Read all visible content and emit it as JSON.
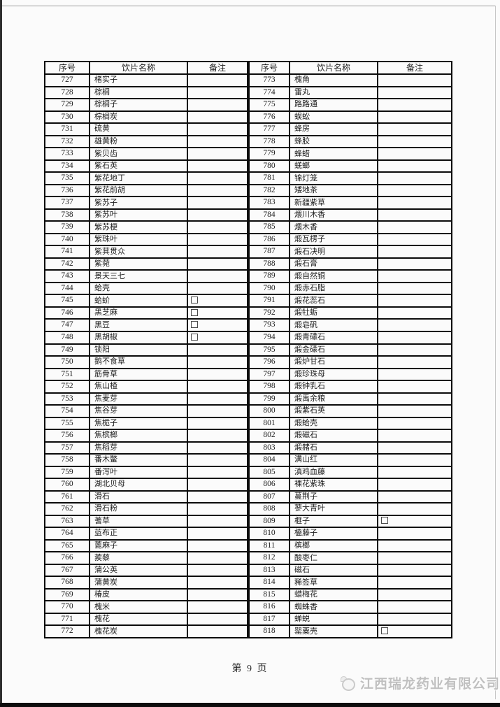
{
  "page": {
    "footer_page_label": "第 9 页",
    "watermark_company": "江西瑞龙药业有限公司"
  },
  "colors": {
    "table_border": "#0b0b0b",
    "text": "#202020",
    "watermark": "#c0c0c0",
    "page_background": "#fbfbfb"
  },
  "table": {
    "headers": {
      "no": "序号",
      "name": "饮片名称",
      "remark": "备注"
    },
    "left_col_widths": [
      64,
      140,
      86
    ],
    "right_col_widths": [
      58,
      126,
      106
    ],
    "left_rows": [
      {
        "no": "727",
        "name": "楮实子",
        "checkbox": false
      },
      {
        "no": "728",
        "name": "棕榈",
        "checkbox": false
      },
      {
        "no": "729",
        "name": "棕榈子",
        "checkbox": false
      },
      {
        "no": "730",
        "name": "棕榈炭",
        "checkbox": false
      },
      {
        "no": "731",
        "name": "硫黄",
        "checkbox": false
      },
      {
        "no": "732",
        "name": "雄黄粉",
        "checkbox": false
      },
      {
        "no": "733",
        "name": "紫贝齿",
        "checkbox": false
      },
      {
        "no": "734",
        "name": "紫石英",
        "checkbox": false
      },
      {
        "no": "735",
        "name": "紫花地丁",
        "checkbox": false
      },
      {
        "no": "736",
        "name": "紫花前胡",
        "checkbox": false
      },
      {
        "no": "737",
        "name": "紫苏子",
        "checkbox": false
      },
      {
        "no": "738",
        "name": "紫苏叶",
        "checkbox": false
      },
      {
        "no": "739",
        "name": "紫苏梗",
        "checkbox": false
      },
      {
        "no": "740",
        "name": "紫珠叶",
        "checkbox": false
      },
      {
        "no": "741",
        "name": "紫萁贯众",
        "checkbox": false
      },
      {
        "no": "742",
        "name": "紫菀",
        "checkbox": false
      },
      {
        "no": "743",
        "name": "景天三七",
        "checkbox": false
      },
      {
        "no": "744",
        "name": "蛤壳",
        "checkbox": false
      },
      {
        "no": "745",
        "name": "蛤蚧",
        "checkbox": true
      },
      {
        "no": "746",
        "name": "黑芝麻",
        "checkbox": true
      },
      {
        "no": "747",
        "name": "黑豆",
        "checkbox": true
      },
      {
        "no": "748",
        "name": "黑胡椒",
        "checkbox": true
      },
      {
        "no": "749",
        "name": "锁阳",
        "checkbox": false
      },
      {
        "no": "750",
        "name": "鹅不食草",
        "checkbox": false
      },
      {
        "no": "751",
        "name": "筋骨草",
        "checkbox": false
      },
      {
        "no": "752",
        "name": "焦山楂",
        "checkbox": false
      },
      {
        "no": "753",
        "name": "焦麦芽",
        "checkbox": false
      },
      {
        "no": "754",
        "name": "焦谷芽",
        "checkbox": false
      },
      {
        "no": "755",
        "name": "焦栀子",
        "checkbox": false
      },
      {
        "no": "756",
        "name": "焦槟榔",
        "checkbox": false
      },
      {
        "no": "757",
        "name": "焦稻芽",
        "checkbox": false
      },
      {
        "no": "758",
        "name": "番木鳖",
        "checkbox": false
      },
      {
        "no": "759",
        "name": "番泻叶",
        "checkbox": false
      },
      {
        "no": "760",
        "name": "湖北贝母",
        "checkbox": false
      },
      {
        "no": "761",
        "name": "滑石",
        "checkbox": false
      },
      {
        "no": "762",
        "name": "滑石粉",
        "checkbox": false
      },
      {
        "no": "763",
        "name": "蓍草",
        "checkbox": false
      },
      {
        "no": "764",
        "name": "蓝布正",
        "checkbox": false
      },
      {
        "no": "765",
        "name": "蓖麻子",
        "checkbox": false
      },
      {
        "no": "766",
        "name": "蒺藜",
        "checkbox": false
      },
      {
        "no": "767",
        "name": "蒲公英",
        "checkbox": false
      },
      {
        "no": "768",
        "name": "蒲黄炭",
        "checkbox": false
      },
      {
        "no": "769",
        "name": "椿皮",
        "checkbox": false
      },
      {
        "no": "770",
        "name": "槐米",
        "checkbox": false
      },
      {
        "no": "771",
        "name": "槐花",
        "checkbox": false
      },
      {
        "no": "772",
        "name": "槐花炭",
        "checkbox": false
      }
    ],
    "right_rows": [
      {
        "no": "773",
        "name": "槐角",
        "checkbox": false
      },
      {
        "no": "774",
        "name": "雷丸",
        "checkbox": false
      },
      {
        "no": "775",
        "name": "路路通",
        "checkbox": false
      },
      {
        "no": "776",
        "name": "蜈蚣",
        "checkbox": false
      },
      {
        "no": "777",
        "name": "蜂房",
        "checkbox": false
      },
      {
        "no": "778",
        "name": "蜂胶",
        "checkbox": false
      },
      {
        "no": "779",
        "name": "蜂蜡",
        "checkbox": false
      },
      {
        "no": "780",
        "name": "蜣螂",
        "checkbox": false
      },
      {
        "no": "781",
        "name": "锦灯笼",
        "checkbox": false
      },
      {
        "no": "782",
        "name": "矮地茶",
        "checkbox": false
      },
      {
        "no": "783",
        "name": "新疆紫草",
        "checkbox": false
      },
      {
        "no": "784",
        "name": "煨川木香",
        "checkbox": false
      },
      {
        "no": "785",
        "name": "煨木香",
        "checkbox": false
      },
      {
        "no": "786",
        "name": "煅瓦楞子",
        "checkbox": false
      },
      {
        "no": "787",
        "name": "煅石决明",
        "checkbox": false
      },
      {
        "no": "788",
        "name": "煅石膏",
        "checkbox": false
      },
      {
        "no": "789",
        "name": "煅自然铜",
        "checkbox": false
      },
      {
        "no": "790",
        "name": "煅赤石脂",
        "checkbox": false
      },
      {
        "no": "791",
        "name": "煅花蕊石",
        "checkbox": false
      },
      {
        "no": "792",
        "name": "煅牡蛎",
        "checkbox": false
      },
      {
        "no": "793",
        "name": "煅皂矾",
        "checkbox": false
      },
      {
        "no": "794",
        "name": "煅青礞石",
        "checkbox": false
      },
      {
        "no": "795",
        "name": "煅金礞石",
        "checkbox": false
      },
      {
        "no": "796",
        "name": "煅炉甘石",
        "checkbox": false
      },
      {
        "no": "797",
        "name": "煅珍珠母",
        "checkbox": false
      },
      {
        "no": "798",
        "name": "煅钟乳石",
        "checkbox": false
      },
      {
        "no": "799",
        "name": "煅禹余粮",
        "checkbox": false
      },
      {
        "no": "800",
        "name": "煅紫石英",
        "checkbox": false
      },
      {
        "no": "801",
        "name": "煅蛤壳",
        "checkbox": false
      },
      {
        "no": "802",
        "name": "煅磁石",
        "checkbox": false
      },
      {
        "no": "803",
        "name": "煅赭石",
        "checkbox": false
      },
      {
        "no": "804",
        "name": "满山红",
        "checkbox": false
      },
      {
        "no": "805",
        "name": "滇鸡血藤",
        "checkbox": false
      },
      {
        "no": "806",
        "name": "裸花紫珠",
        "checkbox": false
      },
      {
        "no": "807",
        "name": "蔓荆子",
        "checkbox": false
      },
      {
        "no": "808",
        "name": "蓼大青叶",
        "checkbox": false
      },
      {
        "no": "809",
        "name": "榧子",
        "checkbox": true
      },
      {
        "no": "810",
        "name": "榼藤子",
        "checkbox": false
      },
      {
        "no": "811",
        "name": "槟榔",
        "checkbox": false
      },
      {
        "no": "812",
        "name": "酸枣仁",
        "checkbox": false
      },
      {
        "no": "813",
        "name": "磁石",
        "checkbox": false
      },
      {
        "no": "814",
        "name": "豨签草",
        "checkbox": false
      },
      {
        "no": "815",
        "name": "蜡梅花",
        "checkbox": false
      },
      {
        "no": "816",
        "name": "蜘蛛香",
        "checkbox": false
      },
      {
        "no": "817",
        "name": "蝉蜕",
        "checkbox": false
      },
      {
        "no": "818",
        "name": "罂粟壳",
        "checkbox": true
      }
    ]
  }
}
